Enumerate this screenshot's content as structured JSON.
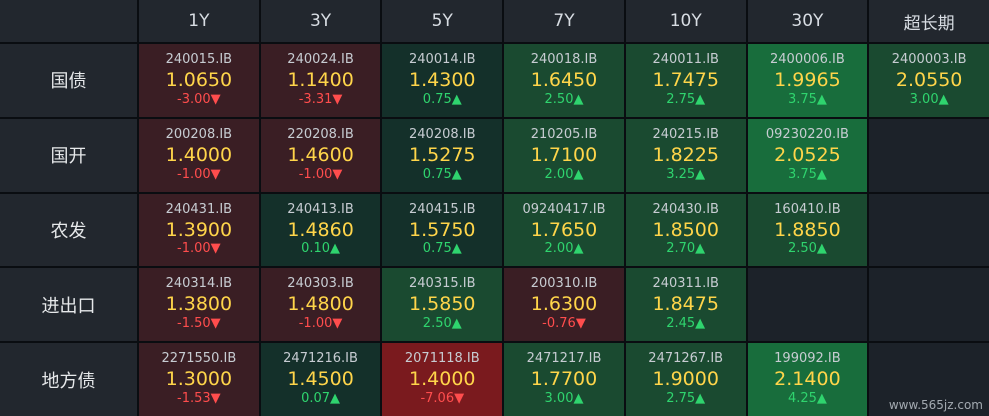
{
  "columns": [
    "1Y",
    "3Y",
    "5Y",
    "7Y",
    "10Y",
    "30Y",
    "超长期"
  ],
  "watermark": "www.565jz.com",
  "colors": {
    "red_light": "#3a1e24",
    "red_mid": "#4a1e24",
    "red_strong": "#7a1a1e",
    "green_dark": "#14302a",
    "green_mid": "#1a4a30",
    "green_bright": "#186d3c",
    "empty": "#1c2229"
  },
  "rows": [
    {
      "label": "国债",
      "cells": [
        {
          "code": "240015.IB",
          "rate": "1.0650",
          "change": "-3.00",
          "dir": "down",
          "tone": "red_light"
        },
        {
          "code": "240024.IB",
          "rate": "1.1400",
          "change": "-3.31",
          "dir": "down",
          "tone": "red_light"
        },
        {
          "code": "240014.IB",
          "rate": "1.4300",
          "change": "0.75",
          "dir": "up",
          "tone": "green_dark"
        },
        {
          "code": "240018.IB",
          "rate": "1.6450",
          "change": "2.50",
          "dir": "up",
          "tone": "green_mid"
        },
        {
          "code": "240011.IB",
          "rate": "1.7475",
          "change": "2.75",
          "dir": "up",
          "tone": "green_mid"
        },
        {
          "code": "2400006.IB",
          "rate": "1.9965",
          "change": "3.75",
          "dir": "up",
          "tone": "green_bright"
        },
        {
          "code": "2400003.IB",
          "rate": "2.0550",
          "change": "3.00",
          "dir": "up",
          "tone": "green_mid"
        }
      ]
    },
    {
      "label": "国开",
      "cells": [
        {
          "code": "200208.IB",
          "rate": "1.4000",
          "change": "-1.00",
          "dir": "down",
          "tone": "red_light"
        },
        {
          "code": "220208.IB",
          "rate": "1.4600",
          "change": "-1.00",
          "dir": "down",
          "tone": "red_light"
        },
        {
          "code": "240208.IB",
          "rate": "1.5275",
          "change": "0.75",
          "dir": "up",
          "tone": "green_dark"
        },
        {
          "code": "210205.IB",
          "rate": "1.7100",
          "change": "2.00",
          "dir": "up",
          "tone": "green_mid"
        },
        {
          "code": "240215.IB",
          "rate": "1.8225",
          "change": "3.25",
          "dir": "up",
          "tone": "green_mid"
        },
        {
          "code": "09230220.IB",
          "rate": "2.0525",
          "change": "3.75",
          "dir": "up",
          "tone": "green_bright"
        },
        null
      ]
    },
    {
      "label": "农发",
      "cells": [
        {
          "code": "240431.IB",
          "rate": "1.3900",
          "change": "-1.00",
          "dir": "down",
          "tone": "red_light"
        },
        {
          "code": "240413.IB",
          "rate": "1.4860",
          "change": "0.10",
          "dir": "up",
          "tone": "green_dark"
        },
        {
          "code": "240415.IB",
          "rate": "1.5750",
          "change": "0.75",
          "dir": "up",
          "tone": "green_dark"
        },
        {
          "code": "09240417.IB",
          "rate": "1.7650",
          "change": "2.00",
          "dir": "up",
          "tone": "green_mid"
        },
        {
          "code": "240430.IB",
          "rate": "1.8500",
          "change": "2.70",
          "dir": "up",
          "tone": "green_mid"
        },
        {
          "code": "160410.IB",
          "rate": "1.8850",
          "change": "2.50",
          "dir": "up",
          "tone": "green_mid"
        },
        null
      ]
    },
    {
      "label": "进出口",
      "cells": [
        {
          "code": "240314.IB",
          "rate": "1.3800",
          "change": "-1.50",
          "dir": "down",
          "tone": "red_light"
        },
        {
          "code": "240303.IB",
          "rate": "1.4800",
          "change": "-1.00",
          "dir": "down",
          "tone": "red_light"
        },
        {
          "code": "240315.IB",
          "rate": "1.5850",
          "change": "2.50",
          "dir": "up",
          "tone": "green_mid"
        },
        {
          "code": "200310.IB",
          "rate": "1.6300",
          "change": "-0.76",
          "dir": "down",
          "tone": "red_light"
        },
        {
          "code": "240311.IB",
          "rate": "1.8475",
          "change": "2.45",
          "dir": "up",
          "tone": "green_mid"
        },
        null,
        null
      ]
    },
    {
      "label": "地方债",
      "cells": [
        {
          "code": "2271550.IB",
          "rate": "1.3000",
          "change": "-1.53",
          "dir": "down",
          "tone": "red_light"
        },
        {
          "code": "2471216.IB",
          "rate": "1.4500",
          "change": "0.07",
          "dir": "up",
          "tone": "green_dark"
        },
        {
          "code": "2071118.IB",
          "rate": "1.4000",
          "change": "-7.06",
          "dir": "down",
          "tone": "red_strong"
        },
        {
          "code": "2471217.IB",
          "rate": "1.7700",
          "change": "3.00",
          "dir": "up",
          "tone": "green_mid"
        },
        {
          "code": "2471267.IB",
          "rate": "1.9000",
          "change": "2.75",
          "dir": "up",
          "tone": "green_mid"
        },
        {
          "code": "199092.IB",
          "rate": "2.1400",
          "change": "4.25",
          "dir": "up",
          "tone": "green_bright"
        },
        null
      ]
    }
  ]
}
